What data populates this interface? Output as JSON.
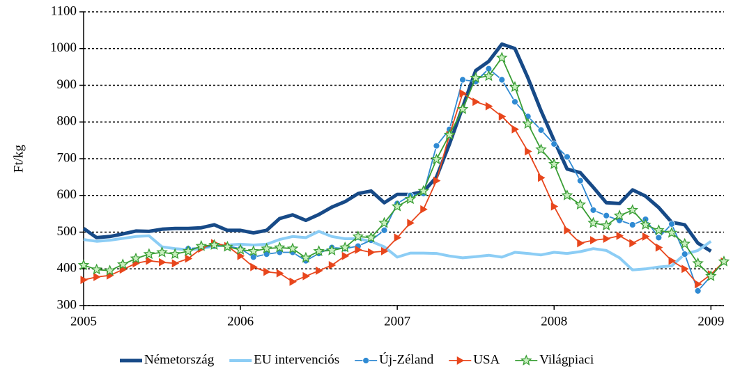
{
  "chart_data": {
    "type": "line",
    "y_label": "Ft/kg",
    "x": [
      2005,
      2005.083,
      2005.167,
      2005.25,
      2005.333,
      2005.417,
      2005.5,
      2005.583,
      2005.667,
      2005.75,
      2005.833,
      2005.917,
      2006,
      2006.083,
      2006.167,
      2006.25,
      2006.333,
      2006.417,
      2006.5,
      2006.583,
      2006.667,
      2006.75,
      2006.833,
      2006.917,
      2007,
      2007.083,
      2007.167,
      2007.25,
      2007.333,
      2007.417,
      2007.5,
      2007.583,
      2007.667,
      2007.75,
      2007.833,
      2007.917,
      2008,
      2008.083,
      2008.167,
      2008.25,
      2008.333,
      2008.417,
      2008.5,
      2008.583,
      2008.667,
      2008.75,
      2008.833,
      2008.917,
      2009,
      2009.083
    ],
    "xlim": [
      2005,
      2009.083
    ],
    "xticks": [
      2005,
      2006,
      2007,
      2008,
      2009
    ],
    "ylim": [
      300,
      1100
    ],
    "yticks": [
      300,
      400,
      500,
      600,
      700,
      800,
      900,
      1000,
      1100
    ],
    "grid": true,
    "legend": "bottom",
    "series": [
      {
        "name": "Németország",
        "color": "#174a87",
        "linewidth": 5,
        "marker": null,
        "values": [
          510,
          485,
          488,
          495,
          503,
          502,
          508,
          510,
          510,
          512,
          520,
          505,
          505,
          498,
          505,
          537,
          547,
          532,
          548,
          568,
          583,
          605,
          612,
          580,
          603,
          603,
          610,
          650,
          740,
          840,
          940,
          965,
          1012,
          1000,
          920,
          830,
          750,
          672,
          662,
          622,
          580,
          578,
          615,
          598,
          567,
          527,
          520,
          470,
          448,
          null
        ]
      },
      {
        "name": "EU intervenciós",
        "color": "#8ccdf5",
        "linewidth": 4,
        "marker": null,
        "values": [
          480,
          475,
          478,
          483,
          488,
          490,
          460,
          455,
          452,
          455,
          462,
          465,
          467,
          465,
          467,
          480,
          488,
          485,
          502,
          488,
          482,
          482,
          475,
          460,
          432,
          443,
          443,
          442,
          435,
          430,
          433,
          437,
          432,
          445,
          442,
          438,
          445,
          442,
          447,
          455,
          450,
          430,
          397,
          400,
          405,
          408,
          440,
          450,
          475,
          null
        ]
      },
      {
        "name": "Új-Zéland",
        "color": "#2f8ad3",
        "linewidth": 1.8,
        "marker": "circle",
        "values": [
          null,
          null,
          null,
          null,
          null,
          null,
          null,
          null,
          455,
          458,
          462,
          462,
          455,
          432,
          440,
          445,
          445,
          422,
          442,
          458,
          455,
          462,
          478,
          505,
          578,
          600,
          605,
          735,
          780,
          915,
          910,
          945,
          915,
          855,
          815,
          778,
          740,
          705,
          640,
          560,
          545,
          532,
          520,
          535,
          485,
          522,
          440,
          340,
          380,
          420
        ]
      },
      {
        "name": "USA",
        "color": "#e8461c",
        "linewidth": 1.8,
        "marker": "triangle",
        "values": [
          370,
          378,
          382,
          398,
          415,
          422,
          418,
          415,
          428,
          455,
          470,
          462,
          435,
          405,
          392,
          388,
          365,
          380,
          395,
          410,
          435,
          452,
          445,
          448,
          485,
          525,
          562,
          640,
          765,
          878,
          855,
          843,
          815,
          780,
          720,
          648,
          570,
          505,
          470,
          478,
          482,
          490,
          470,
          488,
          458,
          422,
          400,
          358,
          385,
          420
        ]
      },
      {
        "name": "Világpiaci",
        "color": "#3a9e35",
        "linewidth": 1.8,
        "marker": "star",
        "values": [
          410,
          398,
          395,
          412,
          428,
          440,
          445,
          440,
          448,
          462,
          465,
          460,
          452,
          448,
          455,
          458,
          455,
          430,
          448,
          450,
          458,
          488,
          485,
          525,
          570,
          590,
          612,
          698,
          765,
          835,
          920,
          925,
          975,
          895,
          795,
          725,
          685,
          600,
          575,
          525,
          518,
          545,
          560,
          520,
          505,
          498,
          468,
          415,
          380,
          420
        ]
      }
    ]
  }
}
